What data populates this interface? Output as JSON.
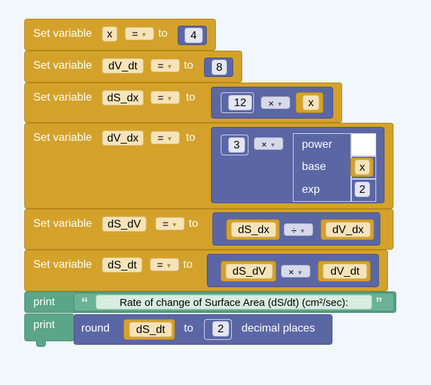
{
  "workspace": {
    "set_label": "Set variable",
    "to_label": "to",
    "assign_op": "=",
    "set1": {
      "var": "x",
      "value": "4"
    },
    "set2": {
      "var": "dV_dt",
      "value": "8"
    },
    "set3": {
      "var": "dS_dx",
      "num": "12",
      "op": "×",
      "ref": "x"
    },
    "set4": {
      "var": "dV_dx",
      "num": "3",
      "op": "×",
      "power": {
        "title": "power",
        "base_label": "base",
        "exp_label": "exp",
        "base": "x",
        "exp": "2"
      }
    },
    "set5": {
      "var": "dS_dV",
      "left": "dS_dx",
      "op": "÷",
      "right": "dV_dx"
    },
    "set6": {
      "var": "dS_dt",
      "left": "dS_dV",
      "op": "×",
      "right": "dV_dt"
    },
    "print1": {
      "label": "print",
      "text": "Rate of change of Surface Area (dS/dt) (cm²/sec):",
      "open_quote": "“",
      "close_quote": "”"
    },
    "print2": {
      "label": "print",
      "round_label": "round",
      "var": "dS_dt",
      "to_label": "to",
      "places": "2",
      "suffix": "decimal places"
    }
  },
  "colors": {
    "variables": "#d4a22a",
    "math": "#5b67a5",
    "print": "#5ba58a",
    "background": "#f1f7fd"
  }
}
